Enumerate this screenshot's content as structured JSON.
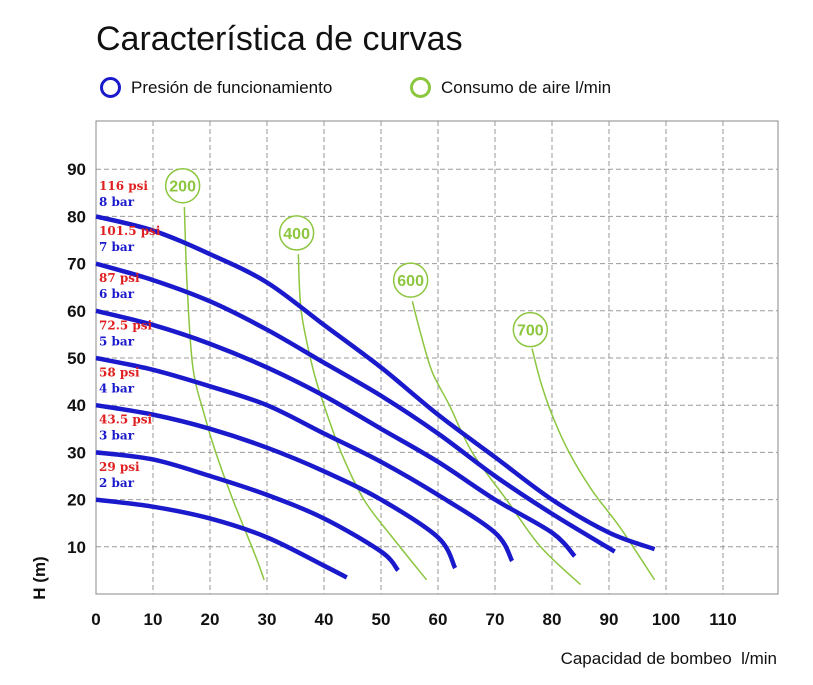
{
  "chart_data": {
    "type": "line",
    "title": "Característica de curvas",
    "xlabel": "Capacidad de bombeo  l/min",
    "ylabel": "H (m)",
    "xlim": [
      0,
      120
    ],
    "ylim": [
      0,
      100
    ],
    "x_ticks": [
      "0",
      "10",
      "20",
      "30",
      "40",
      "50",
      "60",
      "70",
      "80",
      "90",
      "100",
      "110"
    ],
    "y_ticks": [
      "10",
      "20",
      "30",
      "40",
      "50",
      "60",
      "70",
      "80",
      "90"
    ],
    "grid": true,
    "legend": [
      {
        "label": "Presión de funcionamiento",
        "color": "#1a1acc"
      },
      {
        "label": "Consumo de aire l/min",
        "color": "#8cc63f"
      }
    ],
    "colors": {
      "pressure": "#1a1acc",
      "air": "#8cc63f",
      "psi_label": "#e02020",
      "bar_label": "#1a1acc",
      "grid": "#9a9a9a"
    },
    "series": [
      {
        "name": "8 bar",
        "psi": "116 psi",
        "label_y": 80.5,
        "points": [
          [
            0,
            80
          ],
          [
            10,
            77
          ],
          [
            20,
            72
          ],
          [
            30,
            66
          ],
          [
            40,
            57
          ],
          [
            50,
            48
          ],
          [
            60,
            38
          ],
          [
            70,
            29
          ],
          [
            80,
            20
          ],
          [
            90,
            13
          ],
          [
            98,
            9.5
          ]
        ]
      },
      {
        "name": "7 bar",
        "psi": "101.5 psi",
        "label_y": 71,
        "points": [
          [
            0,
            70
          ],
          [
            10,
            66.5
          ],
          [
            20,
            62
          ],
          [
            30,
            56
          ],
          [
            40,
            49
          ],
          [
            50,
            42
          ],
          [
            60,
            34
          ],
          [
            70,
            25
          ],
          [
            80,
            17
          ],
          [
            91,
            9
          ]
        ]
      },
      {
        "name": "6 bar",
        "psi": "87 psi",
        "label_y": 61,
        "points": [
          [
            0,
            60
          ],
          [
            10,
            57
          ],
          [
            20,
            53
          ],
          [
            30,
            48
          ],
          [
            40,
            42
          ],
          [
            50,
            35
          ],
          [
            60,
            28
          ],
          [
            70,
            20
          ],
          [
            80,
            13
          ],
          [
            84,
            8
          ]
        ]
      },
      {
        "name": "5 bar",
        "psi": "72.5 psi",
        "label_y": 51,
        "points": [
          [
            0,
            50
          ],
          [
            10,
            47.5
          ],
          [
            20,
            44
          ],
          [
            30,
            40
          ],
          [
            40,
            34
          ],
          [
            50,
            28
          ],
          [
            60,
            21
          ],
          [
            70,
            13
          ],
          [
            73,
            7
          ]
        ]
      },
      {
        "name": "4 bar",
        "psi": "58 psi",
        "label_y": 41,
        "points": [
          [
            0,
            40
          ],
          [
            10,
            38
          ],
          [
            20,
            35
          ],
          [
            30,
            31
          ],
          [
            40,
            26
          ],
          [
            50,
            20
          ],
          [
            60,
            12
          ],
          [
            63,
            5.5
          ]
        ]
      },
      {
        "name": "3 bar",
        "psi": "43.5 psi",
        "label_y": 31,
        "points": [
          [
            0,
            30
          ],
          [
            10,
            28.5
          ],
          [
            20,
            25
          ],
          [
            30,
            21
          ],
          [
            40,
            16
          ],
          [
            50,
            9
          ],
          [
            53,
            5
          ]
        ]
      },
      {
        "name": "2 bar",
        "psi": "29 psi",
        "label_y": 21,
        "points": [
          [
            0,
            20
          ],
          [
            10,
            18.5
          ],
          [
            20,
            16
          ],
          [
            30,
            12
          ],
          [
            40,
            6
          ],
          [
            44,
            3.5
          ]
        ]
      }
    ],
    "air_consumption": [
      {
        "label": "200",
        "label_x": 15.2,
        "label_y": 86.5,
        "points": [
          [
            15.5,
            82
          ],
          [
            16,
            65
          ],
          [
            17,
            48
          ],
          [
            19,
            38
          ],
          [
            21,
            30
          ],
          [
            24,
            20
          ],
          [
            28,
            8
          ],
          [
            29.5,
            3
          ]
        ]
      },
      {
        "label": "400",
        "label_x": 35.2,
        "label_y": 76.5,
        "points": [
          [
            35.5,
            72
          ],
          [
            36,
            60
          ],
          [
            38,
            48
          ],
          [
            40,
            40
          ],
          [
            43,
            30
          ],
          [
            47,
            20
          ],
          [
            52,
            12
          ],
          [
            58,
            3
          ]
        ]
      },
      {
        "label": "600",
        "label_x": 55.2,
        "label_y": 66.5,
        "points": [
          [
            55.5,
            62
          ],
          [
            57,
            55
          ],
          [
            59,
            47
          ],
          [
            62,
            40
          ],
          [
            66,
            30
          ],
          [
            72,
            20
          ],
          [
            78,
            10
          ],
          [
            85,
            2
          ]
        ]
      },
      {
        "label": "700",
        "label_x": 76.2,
        "label_y": 56,
        "points": [
          [
            76.5,
            52
          ],
          [
            78,
            45
          ],
          [
            80,
            38
          ],
          [
            83,
            30
          ],
          [
            87,
            22
          ],
          [
            92,
            14
          ],
          [
            98,
            3
          ]
        ]
      }
    ]
  }
}
